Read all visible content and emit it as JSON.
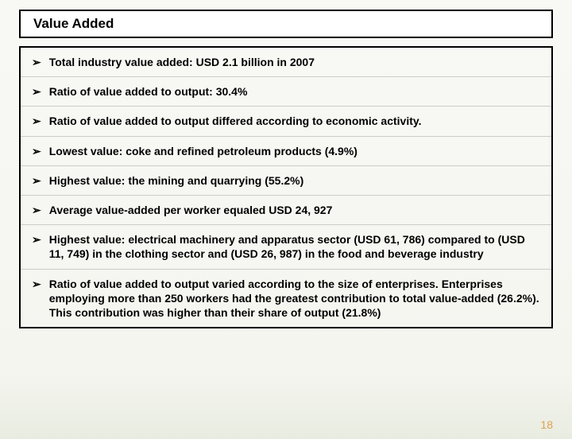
{
  "title": "Value Added",
  "bullets": [
    "Total industry value added: USD 2.1 billion in 2007",
    "Ratio of value added to output: 30.4%",
    "Ratio of value added to output differed according to economic activity.",
    "Lowest value: coke and refined petroleum products (4.9%)",
    "Highest value: the mining and quarrying (55.2%)",
    "Average value-added per worker equaled USD 24, 927",
    "Highest value: electrical machinery and apparatus sector (USD 61, 786) compared to (USD 11, 749) in the clothing sector and (USD 26, 987) in the food and beverage industry",
    "Ratio of value added to output varied according to the size of enterprises. Enterprises employing more than 250 workers had the greatest contribution to total value-added (26.2%). This contribution was higher than their share of output (21.8%)"
  ],
  "bullet_glyph": "➢",
  "page_number": "18",
  "colors": {
    "border": "#000000",
    "text": "#000000",
    "page_number": "#e0a050",
    "bg_top": "#f8f8f5",
    "bg_bottom": "#e8ece0",
    "divider": "#cccccc"
  },
  "typography": {
    "title_fontsize": 17,
    "bullet_fontsize": 14,
    "font_weight": "bold",
    "font_family": "Arial"
  }
}
